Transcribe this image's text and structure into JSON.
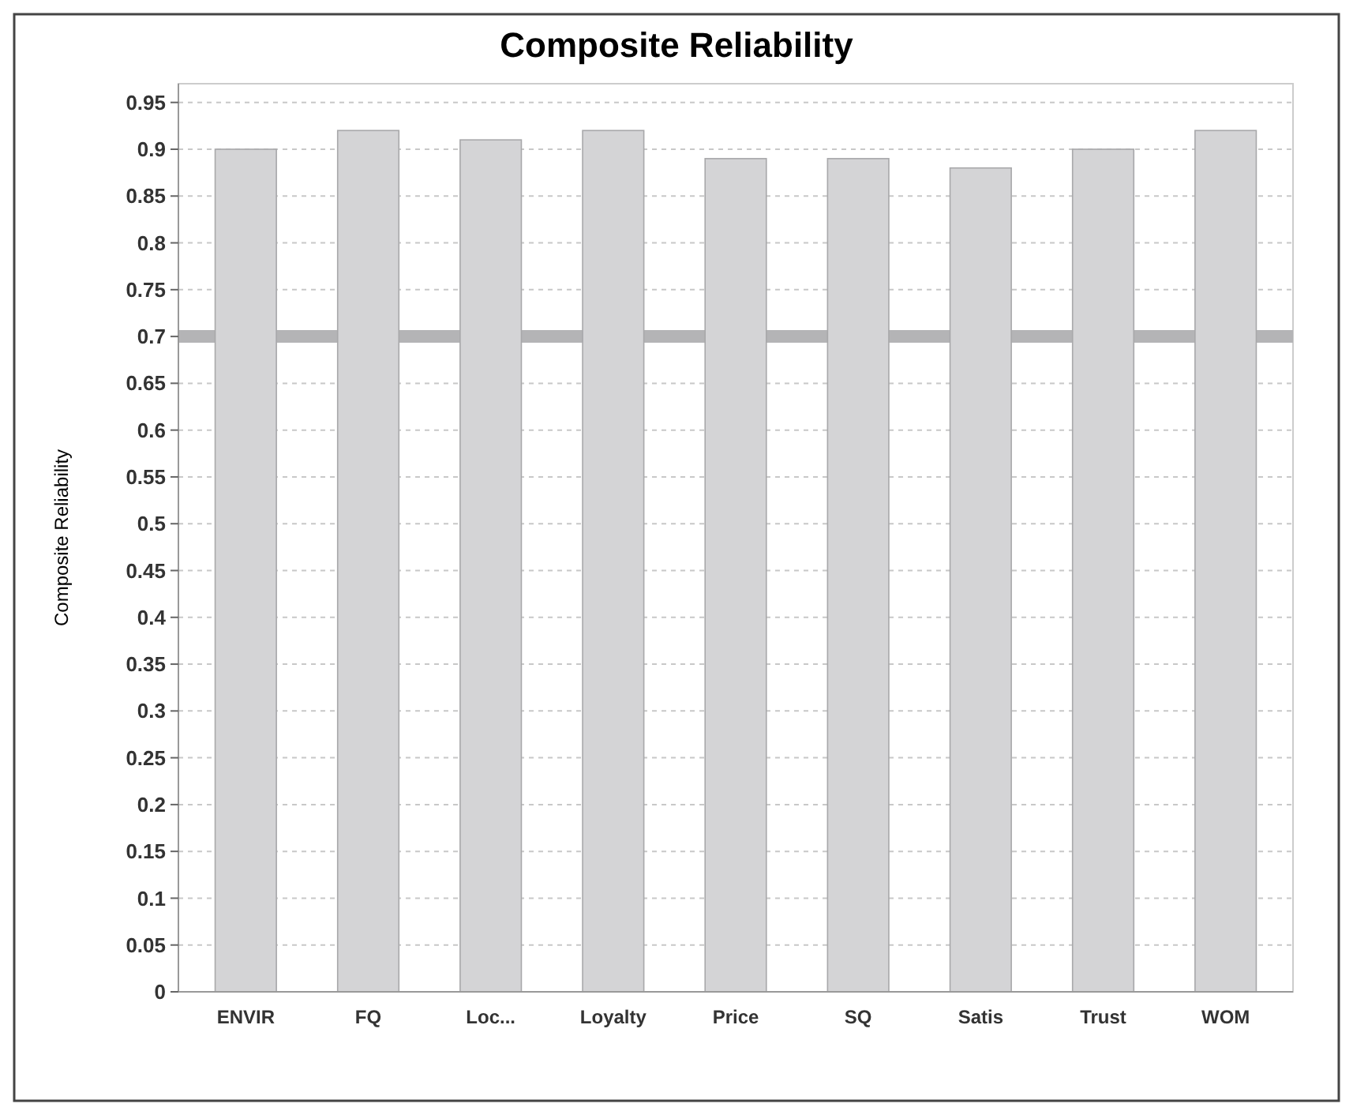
{
  "chart_data": {
    "type": "bar",
    "title": "Composite Reliability",
    "ylabel": "Composite Reliability",
    "categories": [
      "ENVIR",
      "FQ",
      "Loc...",
      "Loyalty",
      "Price",
      "SQ",
      "Satis",
      "Trust",
      "WOM"
    ],
    "values": [
      0.9,
      0.92,
      0.91,
      0.92,
      0.89,
      0.89,
      0.88,
      0.9,
      0.92
    ],
    "color": "#d4d4d6",
    "ylim": [
      0,
      0.97
    ],
    "yticks": [
      0,
      0.05,
      0.1,
      0.15,
      0.2,
      0.25,
      0.3,
      0.35,
      0.4,
      0.45,
      0.5,
      0.55,
      0.6,
      0.65,
      0.7,
      0.75,
      0.8,
      0.85,
      0.9,
      0.95
    ],
    "grid": "y",
    "ref_lines": [
      {
        "axis": "y",
        "value": 0.7,
        "color": "#b4b4b6"
      }
    ]
  }
}
